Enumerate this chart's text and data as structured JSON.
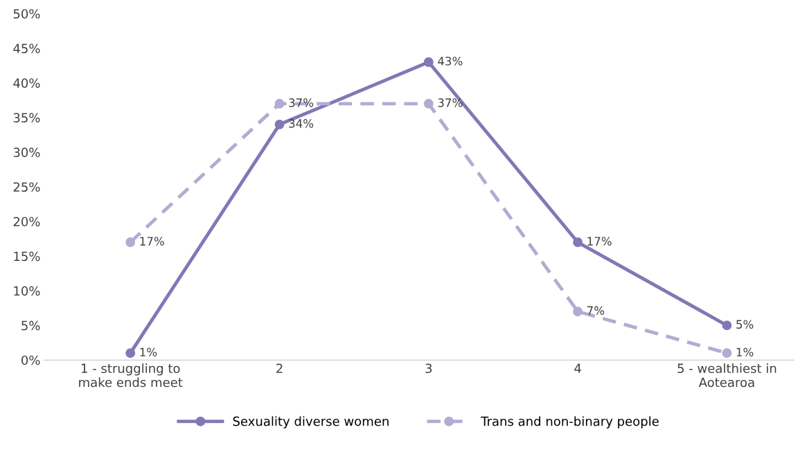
{
  "chart_data": {
    "type": "line",
    "categories": [
      "1 - struggling to\nmake ends meet",
      "2",
      "3",
      "4",
      "5 - wealthiest in\nAotearoa"
    ],
    "series": [
      {
        "name": "Sexuality diverse women",
        "color": "#8079b5",
        "values": [
          1,
          34,
          43,
          17,
          5
        ],
        "line_style": "solid",
        "value_labels": [
          "1%",
          "34%",
          "43%",
          "17%",
          "5%"
        ]
      },
      {
        "name": "Trans and non-binary people",
        "color": "#b1acd2",
        "values": [
          17,
          37,
          37,
          7,
          1
        ],
        "line_style": "dashed",
        "value_labels": [
          "17%",
          "37%",
          "37%",
          "7%",
          "1%"
        ]
      }
    ],
    "ylim": [
      0,
      50
    ],
    "yticks": [
      {
        "value": 0,
        "label": "0%"
      },
      {
        "value": 5,
        "label": "5%"
      },
      {
        "value": 10,
        "label": "10%"
      },
      {
        "value": 15,
        "label": "15%"
      },
      {
        "value": 20,
        "label": "20%"
      },
      {
        "value": 25,
        "label": "25%"
      },
      {
        "value": 30,
        "label": "30%"
      },
      {
        "value": 35,
        "label": "35%"
      },
      {
        "value": 40,
        "label": "40%"
      },
      {
        "value": 45,
        "label": "45%"
      },
      {
        "value": 50,
        "label": "50%"
      }
    ],
    "marker": "circle",
    "grid": false,
    "legend": "bottom"
  }
}
